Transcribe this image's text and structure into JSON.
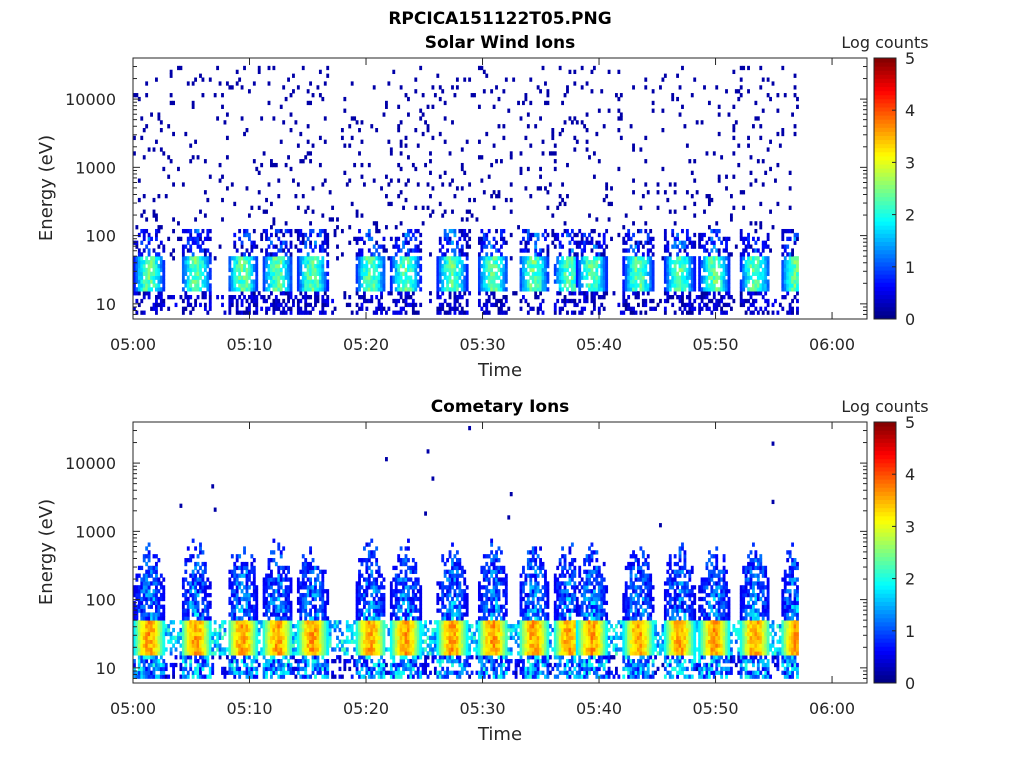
{
  "figure_title": "RPCICA151122T05.PNG",
  "chart_data": [
    {
      "type": "heatmap",
      "title": "Solar Wind Ions",
      "xlabel": "Time",
      "ylabel": "Energy (eV)",
      "y_scale": "log",
      "ylim": [
        6,
        40000
      ],
      "xlim": [
        "05:00",
        "06:03"
      ],
      "x_ticks": [
        "05:00",
        "05:10",
        "05:20",
        "05:30",
        "05:40",
        "05:50",
        "06:00"
      ],
      "y_ticks": [
        "10",
        "100",
        "1000",
        "10000"
      ],
      "y_tick_values": [
        10,
        100,
        1000,
        10000
      ],
      "colorbar": {
        "label": "Log counts",
        "range": [
          0,
          5
        ],
        "ticks": [
          "0",
          "1",
          "2",
          "3",
          "4",
          "5"
        ],
        "colormap": "jet"
      },
      "data_extent_time": [
        "05:00",
        "05:57"
      ],
      "signal": {
        "core_energy_ev": [
          15,
          45
        ],
        "core_log_counts_max": 2.7,
        "sparse_background_log_counts": 0.2,
        "sparse_background_energy_ev": [
          40,
          30000
        ],
        "bursts_start_minutes": [
          0,
          4,
          8,
          11,
          14,
          19,
          22,
          26,
          29.5,
          33,
          36,
          38,
          42,
          45.5,
          48.5,
          52,
          55.5
        ]
      },
      "grid": false,
      "legend": "none"
    },
    {
      "type": "heatmap",
      "title": "Cometary Ions",
      "xlabel": "Time",
      "ylabel": "Energy (eV)",
      "y_scale": "log",
      "ylim": [
        6,
        40000
      ],
      "xlim": [
        "05:00",
        "06:03"
      ],
      "x_ticks": [
        "05:00",
        "05:10",
        "05:20",
        "05:30",
        "05:40",
        "05:50",
        "06:00"
      ],
      "y_ticks": [
        "10",
        "100",
        "1000",
        "10000"
      ],
      "y_tick_values": [
        10,
        100,
        1000,
        10000
      ],
      "colorbar": {
        "label": "Log counts",
        "range": [
          0,
          5
        ],
        "ticks": [
          "0",
          "1",
          "2",
          "3",
          "4",
          "5"
        ],
        "colormap": "jet"
      },
      "data_extent_time": [
        "05:00",
        "05:57"
      ],
      "signal": {
        "core_energy_ev": [
          15,
          45
        ],
        "core_log_counts_max": 3.9,
        "plume_max_energy_ev": 2000,
        "bursts_start_minutes": [
          0,
          4,
          8,
          11,
          14,
          19,
          22,
          26,
          29.5,
          33,
          36,
          38,
          42,
          45.5,
          48.5,
          52,
          55.5
        ]
      },
      "grid": false,
      "legend": "none"
    }
  ]
}
